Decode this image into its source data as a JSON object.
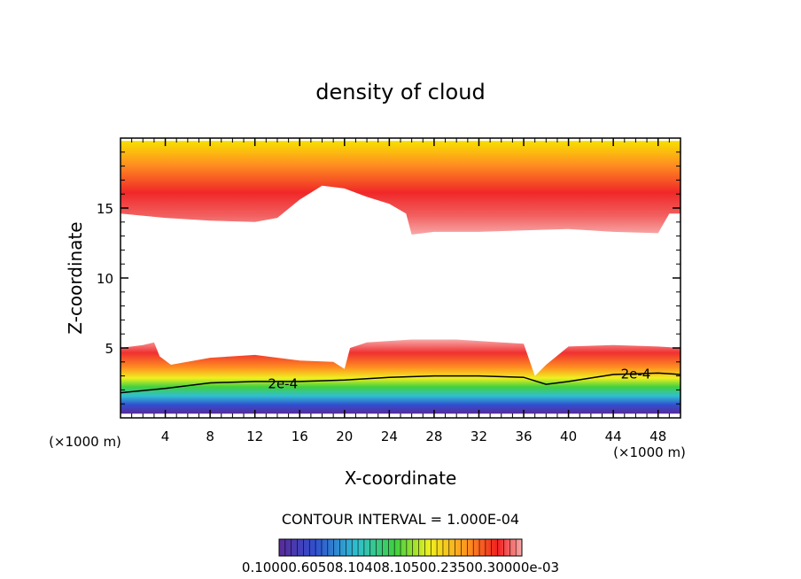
{
  "chart_data": {
    "type": "heatmap",
    "title": "density of cloud",
    "xlabel": "X-coordinate",
    "ylabel": "Z-coordinate",
    "x_unit_left": "(×1000 m)",
    "x_unit_right": "(×1000 m)",
    "xlim": [
      0,
      50
    ],
    "ylim": [
      0,
      20
    ],
    "x_ticks": [
      4,
      8,
      12,
      16,
      20,
      24,
      28,
      32,
      36,
      40,
      44,
      48
    ],
    "y_ticks": [
      5,
      10,
      15
    ],
    "contour_interval_text": "CONTOUR INTERVAL = 1.000E-04",
    "contour_labels": [
      {
        "text": "2e-4",
        "x": 14.5,
        "z": 2.5
      },
      {
        "text": "2e-4",
        "x": 46.0,
        "z": 3.2
      }
    ],
    "colorbar_label": "0.10000.60508.10408.10500.23500.30000e-03",
    "colors": {
      "low": "#5a2a9a",
      "blue": "#3050d0",
      "cyan": "#30c0d0",
      "green": "#40d040",
      "yellow": "#f0f020",
      "orange": "#ff8020",
      "red": "#f02020",
      "pink": "#f8a0a0"
    },
    "layers": {
      "upper_cloud_top_z": 19.8,
      "upper_cloud_base": [
        [
          0,
          14.6
        ],
        [
          4,
          14.3
        ],
        [
          8,
          14.1
        ],
        [
          12,
          14.0
        ],
        [
          14,
          14.3
        ],
        [
          16,
          15.6
        ],
        [
          18,
          16.6
        ],
        [
          20,
          16.4
        ],
        [
          22,
          15.8
        ],
        [
          24,
          15.3
        ],
        [
          25.5,
          14.6
        ],
        [
          26,
          13.1
        ],
        [
          28,
          13.3
        ],
        [
          32,
          13.3
        ],
        [
          36,
          13.4
        ],
        [
          40,
          13.5
        ],
        [
          44,
          13.3
        ],
        [
          48,
          13.2
        ],
        [
          49,
          14.6
        ],
        [
          50,
          14.6
        ]
      ],
      "lower_cloud_bottom_z": 0.3,
      "lower_cloud_top": [
        [
          0,
          5.0
        ],
        [
          2,
          5.2
        ],
        [
          3,
          5.4
        ],
        [
          3.5,
          4.4
        ],
        [
          4.5,
          3.8
        ],
        [
          8,
          4.3
        ],
        [
          12,
          4.5
        ],
        [
          16,
          4.1
        ],
        [
          19,
          4.0
        ],
        [
          20,
          3.5
        ],
        [
          20.5,
          5.0
        ],
        [
          22,
          5.4
        ],
        [
          26,
          5.6
        ],
        [
          30,
          5.6
        ],
        [
          34,
          5.4
        ],
        [
          36,
          5.3
        ],
        [
          37,
          3.0
        ],
        [
          38,
          3.8
        ],
        [
          40,
          5.1
        ],
        [
          44,
          5.2
        ],
        [
          48,
          5.1
        ],
        [
          50,
          5.0
        ]
      ],
      "contour_2e4": [
        [
          0,
          1.8
        ],
        [
          4,
          2.1
        ],
        [
          8,
          2.5
        ],
        [
          12,
          2.6
        ],
        [
          16,
          2.6
        ],
        [
          20,
          2.7
        ],
        [
          24,
          2.9
        ],
        [
          28,
          3.0
        ],
        [
          32,
          3.0
        ],
        [
          36,
          2.9
        ],
        [
          38,
          2.4
        ],
        [
          40,
          2.6
        ],
        [
          44,
          3.1
        ],
        [
          48,
          3.2
        ],
        [
          50,
          3.1
        ]
      ]
    }
  }
}
